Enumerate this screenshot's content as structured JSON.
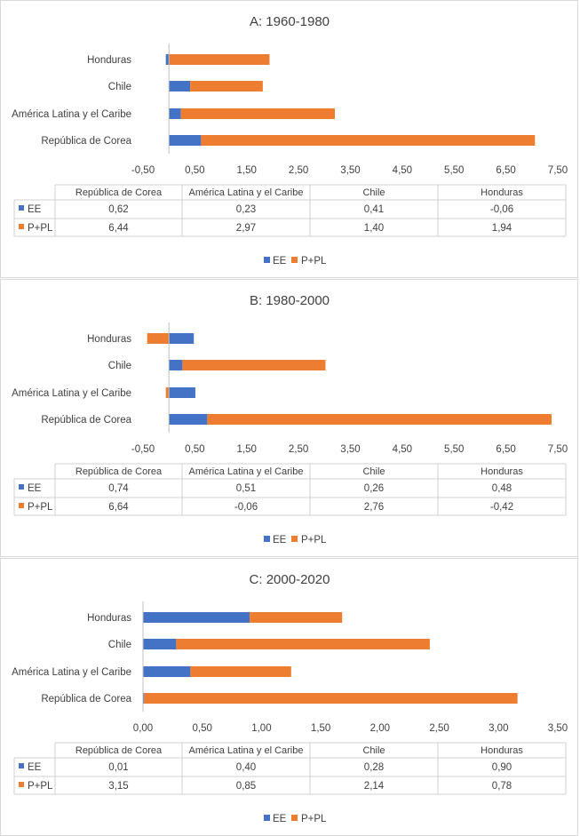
{
  "chart_data": [
    {
      "type": "bar",
      "stacked": true,
      "orientation": "horizontal",
      "title": "A: 1960-1980",
      "categories": [
        "República de Corea",
        "América Latina y el Caribe",
        "Chile",
        "Honduras"
      ],
      "series": [
        {
          "name": "EE",
          "values": [
            0.62,
            0.23,
            0.41,
            -0.06
          ]
        },
        {
          "name": "P+PL",
          "values": [
            6.44,
            2.97,
            1.4,
            1.94
          ]
        }
      ],
      "xlim": [
        -0.5,
        7.5
      ],
      "xticks": [
        "-0,50",
        "0,50",
        "1,50",
        "2,50",
        "3,50",
        "4,50",
        "5,50",
        "6,50",
        "7,50"
      ],
      "table": {
        "ee": [
          "0,62",
          "0,23",
          "0,41",
          "-0,06"
        ],
        "ppl": [
          "6,44",
          "2,97",
          "1,40",
          "1,94"
        ]
      },
      "legend_position": "bottom"
    },
    {
      "type": "bar",
      "stacked": true,
      "orientation": "horizontal",
      "title": "B: 1980-2000",
      "categories": [
        "República de Corea",
        "América Latina y el Caribe",
        "Chile",
        "Honduras"
      ],
      "series": [
        {
          "name": "EE",
          "values": [
            0.74,
            0.51,
            0.26,
            0.48
          ]
        },
        {
          "name": "P+PL",
          "values": [
            6.64,
            -0.06,
            2.76,
            -0.42
          ]
        }
      ],
      "xlim": [
        -0.5,
        7.5
      ],
      "xticks": [
        "-0,50",
        "0,50",
        "1,50",
        "2,50",
        "3,50",
        "4,50",
        "5,50",
        "6,50",
        "7,50"
      ],
      "table": {
        "ee": [
          "0,74",
          "0,51",
          "0,26",
          "0,48"
        ],
        "ppl": [
          "6,64",
          "-0,06",
          "2,76",
          "-0,42"
        ]
      },
      "legend_position": "bottom"
    },
    {
      "type": "bar",
      "stacked": true,
      "orientation": "horizontal",
      "title": "C: 2000-2020",
      "categories": [
        "República de Corea",
        "América Latina y el Caribe",
        "Chile",
        "Honduras"
      ],
      "series": [
        {
          "name": "EE",
          "values": [
            0.01,
            0.4,
            0.28,
            0.9
          ]
        },
        {
          "name": "P+PL",
          "values": [
            3.15,
            0.85,
            2.14,
            0.78
          ]
        }
      ],
      "xlim": [
        0,
        3.5
      ],
      "xticks": [
        "0,00",
        "0,50",
        "1,00",
        "1,50",
        "2,00",
        "2,50",
        "3,00",
        "3,50"
      ],
      "table": {
        "ee": [
          "0,01",
          "0,40",
          "0,28",
          "0,90"
        ],
        "ppl": [
          "3,15",
          "0,85",
          "2,14",
          "0,78"
        ]
      },
      "legend_position": "bottom"
    }
  ],
  "colors": {
    "ee": "#4472c4",
    "ppl": "#ed7d31"
  }
}
